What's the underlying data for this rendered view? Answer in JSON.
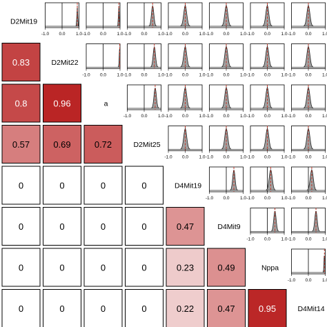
{
  "chart_data": {
    "type": "correlation-matrix",
    "variables": [
      "D2Mit19",
      "D2Mit22",
      "a",
      "D2Mit25",
      "D4Mit19",
      "D4Mit9",
      "Nppa",
      "D4Mit14"
    ],
    "lower_triangle": [
      [
        null,
        null,
        null,
        null,
        null,
        null,
        null,
        null
      ],
      [
        0.83,
        null,
        null,
        null,
        null,
        null,
        null,
        null
      ],
      [
        0.8,
        0.96,
        null,
        null,
        null,
        null,
        null,
        null
      ],
      [
        0.57,
        0.69,
        0.72,
        null,
        null,
        null,
        null,
        null
      ],
      [
        0,
        0,
        0,
        0,
        null,
        null,
        null,
        null
      ],
      [
        0,
        0,
        0,
        0,
        0.47,
        null,
        null,
        null
      ],
      [
        0,
        0,
        0,
        0,
        0.23,
        0.49,
        null,
        null
      ],
      [
        0,
        0,
        0,
        0,
        0.22,
        0.47,
        0.95,
        null
      ]
    ],
    "upper_panel": {
      "type": "density",
      "xlim": [
        -1.0,
        1.0
      ],
      "x_ticks": [
        "-1.0",
        "0.0",
        "1.0"
      ],
      "reference_line_x": 0,
      "dashed_line_color": "#c0392b",
      "fill_color": "#a0a0a0"
    },
    "upper_triangle_mode_estimates": [
      [
        null,
        0.9,
        0.93,
        0.5,
        0,
        0,
        0,
        0
      ],
      [
        null,
        null,
        0.98,
        0.6,
        0,
        0,
        0,
        0
      ],
      [
        null,
        null,
        null,
        0.65,
        0,
        0,
        0,
        0
      ],
      [
        null,
        null,
        null,
        null,
        0,
        0,
        0,
        0
      ],
      [
        null,
        null,
        null,
        null,
        null,
        0.45,
        0.2,
        0.2
      ],
      [
        null,
        null,
        null,
        null,
        null,
        null,
        0.45,
        0.45
      ],
      [
        null,
        null,
        null,
        null,
        null,
        null,
        null,
        0.95
      ],
      [
        null,
        null,
        null,
        null,
        null,
        null,
        null,
        null
      ]
    ],
    "tick_rows": [
      0,
      1,
      2,
      3,
      4,
      5,
      6
    ],
    "colors": {
      "high": "#b71c1c",
      "low": "#ffffff",
      "border": "#000000",
      "light_text": "#ffffff",
      "dark_text": "#000000"
    }
  }
}
